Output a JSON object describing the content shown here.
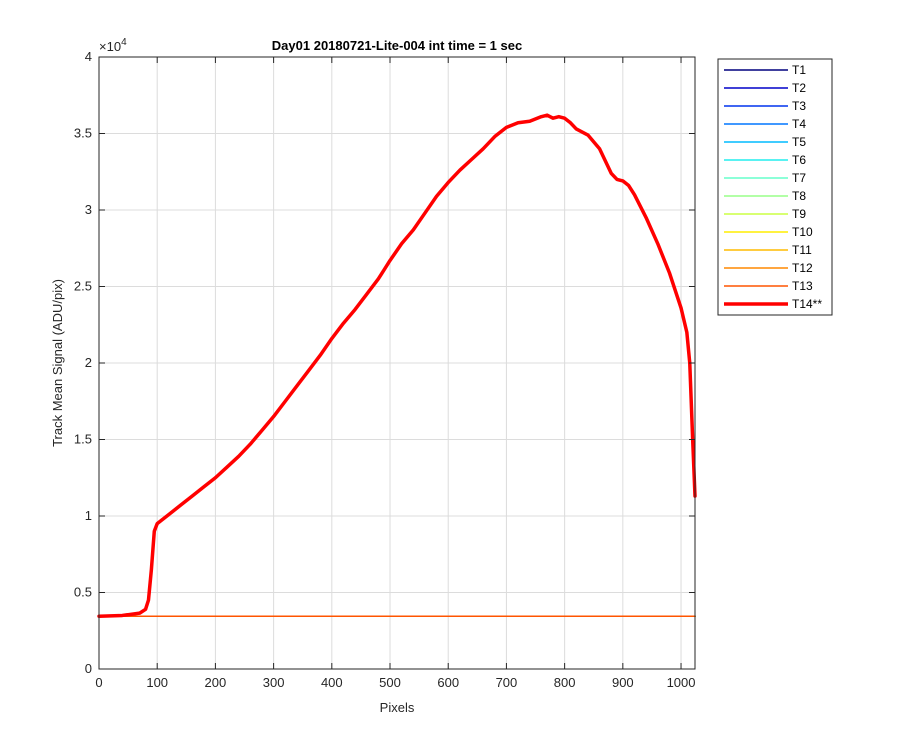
{
  "chart_data": {
    "type": "line",
    "title": "Day01 20180721-Lite-004 int time = 1 sec",
    "xlabel": "Pixels",
    "ylabel": "Track Mean Signal (ADU/pix)",
    "xlim": [
      0,
      1024
    ],
    "ylim": [
      0,
      40000
    ],
    "x_ticks": [
      0,
      100,
      200,
      300,
      400,
      500,
      600,
      700,
      800,
      900,
      1000
    ],
    "x_tick_labels": [
      "0",
      "100",
      "200",
      "300",
      "400",
      "500",
      "600",
      "700",
      "800",
      "900",
      "1000"
    ],
    "y_ticks": [
      0,
      5000,
      10000,
      15000,
      20000,
      25000,
      30000,
      35000,
      40000
    ],
    "y_tick_labels": [
      "0",
      "0.5",
      "1",
      "1.5",
      "2",
      "2.5",
      "3",
      "3.5",
      "4"
    ],
    "y_exponent": "×10",
    "y_exponent_power": "4",
    "grid": true,
    "legend_position": "outside-top-right",
    "series": [
      {
        "name": "T1",
        "color": "#00007f",
        "line_width": 1.5,
        "x": [
          0,
          1024
        ],
        "y": [
          3450,
          3450
        ]
      },
      {
        "name": "T2",
        "color": "#0000c8",
        "line_width": 1.5,
        "x": [
          0,
          1024
        ],
        "y": [
          3450,
          3450
        ]
      },
      {
        "name": "T3",
        "color": "#0033ee",
        "line_width": 1.5,
        "x": [
          0,
          1024
        ],
        "y": [
          3450,
          3450
        ]
      },
      {
        "name": "T4",
        "color": "#0077ff",
        "line_width": 1.5,
        "x": [
          0,
          1024
        ],
        "y": [
          3450,
          3450
        ]
      },
      {
        "name": "T5",
        "color": "#00bbff",
        "line_width": 1.5,
        "x": [
          0,
          1024
        ],
        "y": [
          3450,
          3450
        ]
      },
      {
        "name": "T6",
        "color": "#22eeee",
        "line_width": 1.5,
        "x": [
          0,
          1024
        ],
        "y": [
          3450,
          3450
        ]
      },
      {
        "name": "T7",
        "color": "#66ffcc",
        "line_width": 1.5,
        "x": [
          0,
          1024
        ],
        "y": [
          3450,
          3450
        ]
      },
      {
        "name": "T8",
        "color": "#99ff88",
        "line_width": 1.5,
        "x": [
          0,
          1024
        ],
        "y": [
          3450,
          3450
        ]
      },
      {
        "name": "T9",
        "color": "#ccff44",
        "line_width": 1.5,
        "x": [
          0,
          1024
        ],
        "y": [
          3450,
          3450
        ]
      },
      {
        "name": "T10",
        "color": "#ffee00",
        "line_width": 1.5,
        "x": [
          0,
          1024
        ],
        "y": [
          3450,
          3450
        ]
      },
      {
        "name": "T11",
        "color": "#ffbb00",
        "line_width": 1.5,
        "x": [
          0,
          1024
        ],
        "y": [
          3450,
          3450
        ]
      },
      {
        "name": "T12",
        "color": "#ff8800",
        "line_width": 1.5,
        "x": [
          0,
          1024
        ],
        "y": [
          3450,
          3450
        ]
      },
      {
        "name": "T13",
        "color": "#ff5500",
        "line_width": 1.5,
        "x": [
          0,
          1024
        ],
        "y": [
          3450,
          3450
        ]
      },
      {
        "name": "T14**",
        "color": "#ff0000",
        "line_width": 3.5,
        "x": [
          0,
          40,
          70,
          80,
          85,
          90,
          95,
          100,
          120,
          140,
          160,
          180,
          200,
          220,
          240,
          260,
          280,
          300,
          320,
          340,
          360,
          380,
          400,
          420,
          440,
          460,
          480,
          500,
          520,
          540,
          560,
          580,
          600,
          620,
          640,
          660,
          680,
          700,
          720,
          740,
          760,
          770,
          780,
          790,
          800,
          810,
          820,
          840,
          860,
          880,
          890,
          900,
          910,
          920,
          940,
          960,
          980,
          1000,
          1010,
          1015,
          1020,
          1024
        ],
        "y": [
          3450,
          3500,
          3650,
          3900,
          4500,
          6500,
          9000,
          9500,
          10100,
          10700,
          11300,
          11900,
          12500,
          13200,
          13900,
          14700,
          15600,
          16500,
          17500,
          18500,
          19500,
          20500,
          21600,
          22600,
          23500,
          24500,
          25500,
          26700,
          27800,
          28700,
          29800,
          30900,
          31800,
          32600,
          33300,
          34000,
          34800,
          35400,
          35700,
          35800,
          36100,
          36200,
          36000,
          36100,
          36000,
          35700,
          35300,
          34900,
          34000,
          32400,
          32000,
          31900,
          31600,
          31000,
          29500,
          27800,
          25900,
          23600,
          22000,
          20000,
          15000,
          11300
        ]
      }
    ]
  }
}
